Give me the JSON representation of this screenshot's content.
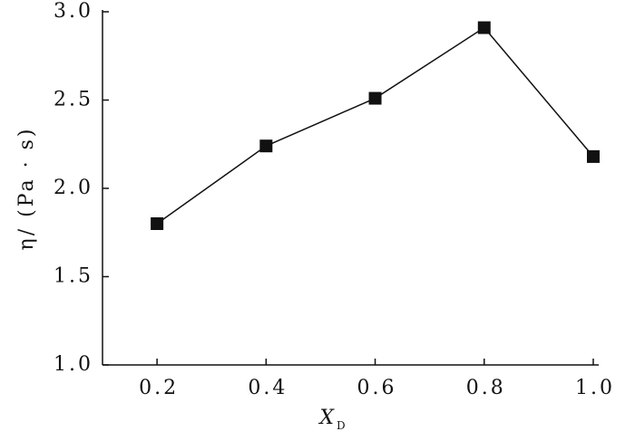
{
  "chart_data": {
    "type": "line",
    "ylabel": "η/ (Pa · s)",
    "xlabel": {
      "text": "X",
      "subscript": "D"
    },
    "x": [
      0.2,
      0.4,
      0.6,
      0.8,
      {
        "value": 1,
        "label": "1.0"
      }
    ],
    "series": [
      {
        "color": "#111111",
        "marker": "square",
        "values": [
          1.8,
          2.24,
          2.51,
          2.91,
          2.18
        ]
      }
    ],
    "xlim": [
      0.1,
      1.01
    ],
    "ylim": [
      1,
      3
    ],
    "xticks": [
      0.2,
      0.4,
      0.6,
      0.8,
      {
        "value": 1,
        "label": "1.0"
      }
    ],
    "yticks": [
      {
        "value": 1,
        "label": "1.0"
      },
      1.5,
      {
        "value": 2,
        "label": "2.0"
      },
      2.5,
      {
        "value": 3,
        "label": "3.0"
      }
    ],
    "grid": false
  }
}
